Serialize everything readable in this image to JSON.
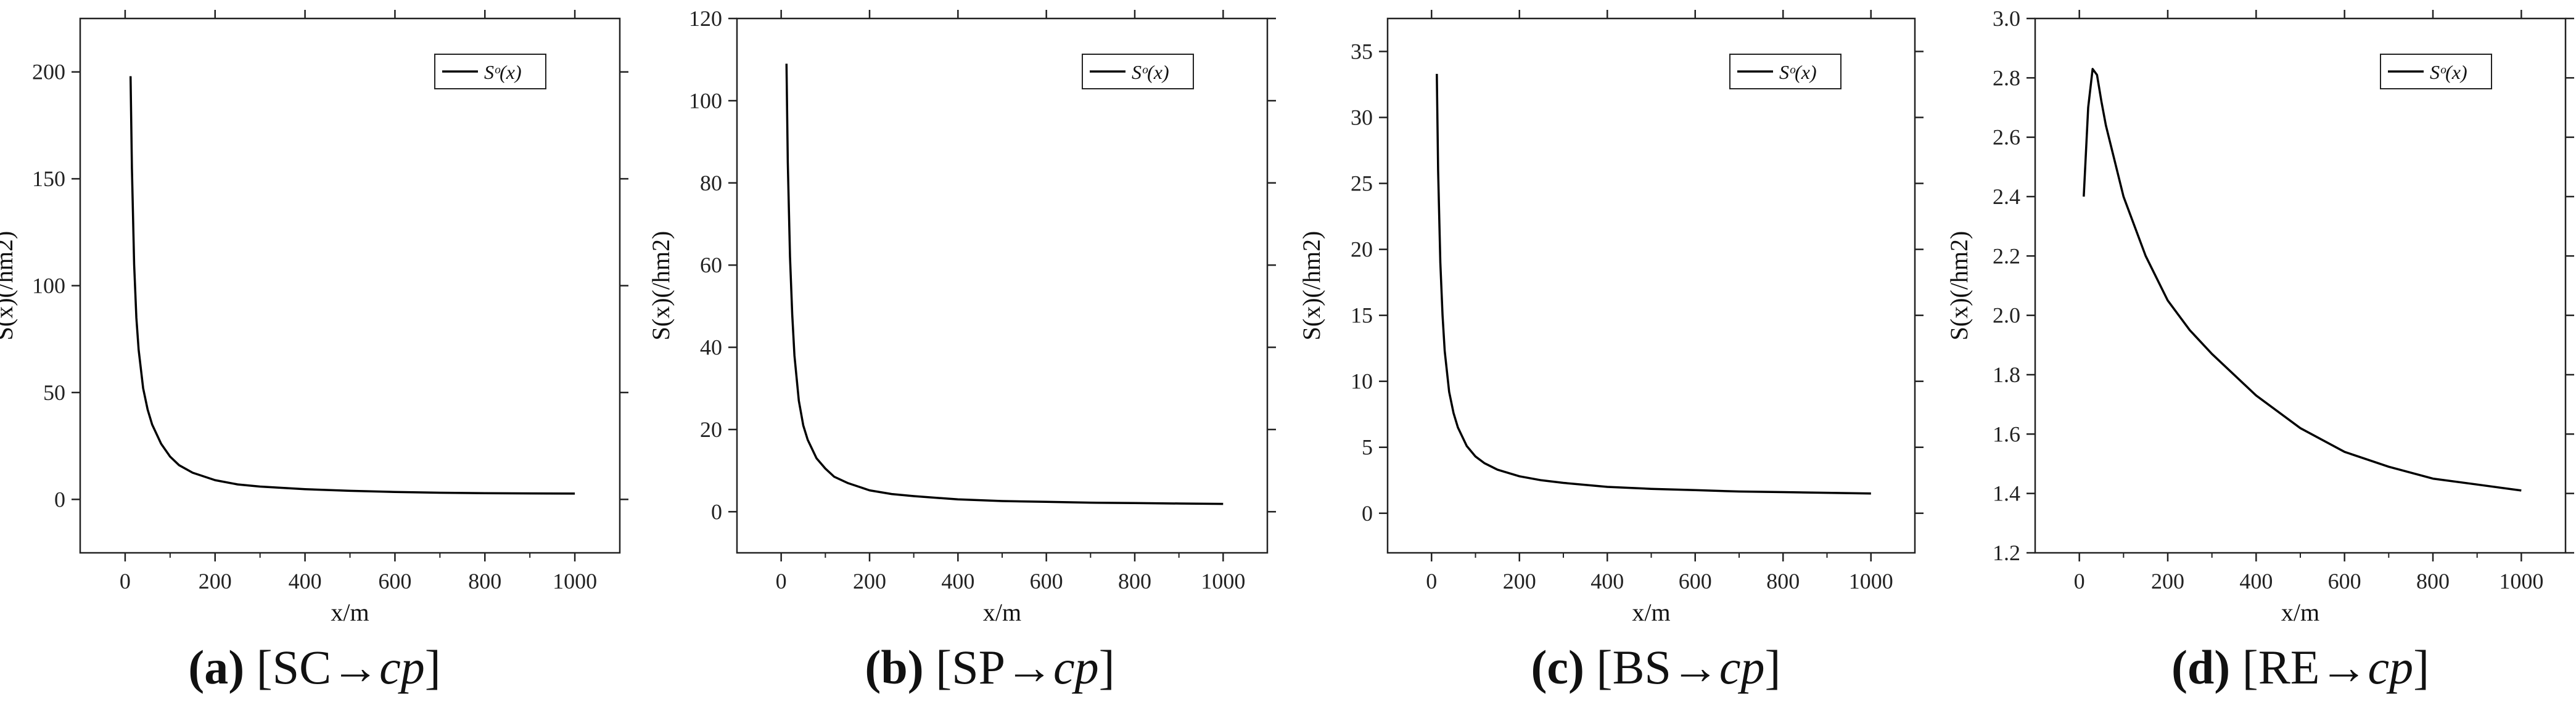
{
  "chart_data": [
    {
      "type": "line",
      "title": "",
      "xlabel": "x/m",
      "ylabel": "S(x)(/hm2)",
      "xlim": [
        -100,
        1100
      ],
      "ylim": [
        -25,
        225
      ],
      "xticks": [
        0,
        200,
        400,
        600,
        800,
        1000
      ],
      "yticks": [
        0,
        50,
        100,
        150,
        200
      ],
      "grid": false,
      "legend": "top-right",
      "series": [
        {
          "name": "Sᵒ(x)",
          "x": [
            12,
            15,
            20,
            25,
            30,
            40,
            50,
            60,
            80,
            100,
            120,
            150,
            200,
            250,
            300,
            400,
            500,
            600,
            700,
            800,
            900,
            1000
          ],
          "values": [
            198,
            155,
            110,
            85,
            70,
            52,
            42,
            35,
            26,
            20,
            16,
            12.5,
            9,
            7,
            6,
            4.8,
            4,
            3.5,
            3.1,
            2.9,
            2.8,
            2.7
          ]
        }
      ],
      "caption": {
        "label": "(a)",
        "text_before": " [SC",
        "arrow": "→",
        "text_after": "cp",
        "close": "]"
      }
    },
    {
      "type": "line",
      "title": "",
      "xlabel": "x/m",
      "ylabel": "S(x)(/hm2)",
      "xlim": [
        -100,
        1100
      ],
      "ylim": [
        -10,
        120
      ],
      "xticks": [
        0,
        200,
        400,
        600,
        800,
        1000
      ],
      "yticks": [
        0,
        20,
        40,
        60,
        80,
        100,
        120
      ],
      "grid": false,
      "legend": "top-right",
      "series": [
        {
          "name": "Sᵒ(x)",
          "x": [
            12,
            15,
            20,
            25,
            30,
            40,
            50,
            60,
            80,
            100,
            120,
            150,
            200,
            250,
            300,
            400,
            500,
            600,
            700,
            800,
            900,
            1000
          ],
          "values": [
            109,
            85,
            62,
            48,
            38,
            27,
            21,
            17.5,
            13,
            10.5,
            8.5,
            7,
            5.2,
            4.3,
            3.8,
            3,
            2.6,
            2.4,
            2.2,
            2.1,
            2,
            1.9
          ]
        }
      ],
      "caption": {
        "label": "(b)",
        "text_before": " [SP",
        "arrow": "→",
        "text_after": "cp",
        "close": "]"
      }
    },
    {
      "type": "line",
      "title": "",
      "xlabel": "x/m",
      "ylabel": "S(x)(/hm2)",
      "xlim": [
        -100,
        1100
      ],
      "ylim": [
        -3,
        37.5
      ],
      "xticks": [
        0,
        200,
        400,
        600,
        800,
        1000
      ],
      "yticks": [
        0,
        5,
        10,
        15,
        20,
        25,
        30,
        35
      ],
      "grid": false,
      "legend": "top-right",
      "series": [
        {
          "name": "Sᵒ(x)",
          "x": [
            12,
            15,
            20,
            25,
            30,
            40,
            50,
            60,
            80,
            100,
            120,
            150,
            200,
            250,
            300,
            400,
            500,
            600,
            700,
            800,
            900,
            1000
          ],
          "values": [
            33.3,
            26,
            19,
            15,
            12.3,
            9.2,
            7.6,
            6.5,
            5.1,
            4.3,
            3.8,
            3.3,
            2.8,
            2.5,
            2.3,
            2.0,
            1.85,
            1.75,
            1.65,
            1.6,
            1.55,
            1.5
          ]
        }
      ],
      "caption": {
        "label": "(c)",
        "text_before": " [BS",
        "arrow": "→",
        "text_after": "cp",
        "close": "]"
      }
    },
    {
      "type": "line",
      "title": "",
      "xlabel": "x/m",
      "ylabel": "S(x)(/hm2)",
      "xlim": [
        -100,
        1100
      ],
      "ylim": [
        1.2,
        3.0
      ],
      "xticks": [
        0,
        200,
        400,
        600,
        800,
        1000
      ],
      "yticks": [
        1.2,
        1.4,
        1.6,
        1.8,
        2.0,
        2.2,
        2.4,
        2.6,
        2.8,
        3.0
      ],
      "grid": false,
      "legend": "top-right",
      "series": [
        {
          "name": "Sᵒ(x)",
          "x": [
            10,
            20,
            30,
            40,
            50,
            60,
            80,
            100,
            150,
            200,
            250,
            300,
            400,
            500,
            600,
            700,
            800,
            900,
            1000
          ],
          "values": [
            2.4,
            2.7,
            2.83,
            2.81,
            2.72,
            2.64,
            2.52,
            2.4,
            2.2,
            2.05,
            1.95,
            1.87,
            1.73,
            1.62,
            1.54,
            1.49,
            1.45,
            1.43,
            1.41
          ]
        }
      ],
      "caption": {
        "label": "(d)",
        "text_before": " [RE",
        "arrow": "→",
        "text_after": "cp",
        "close": "]"
      }
    }
  ]
}
